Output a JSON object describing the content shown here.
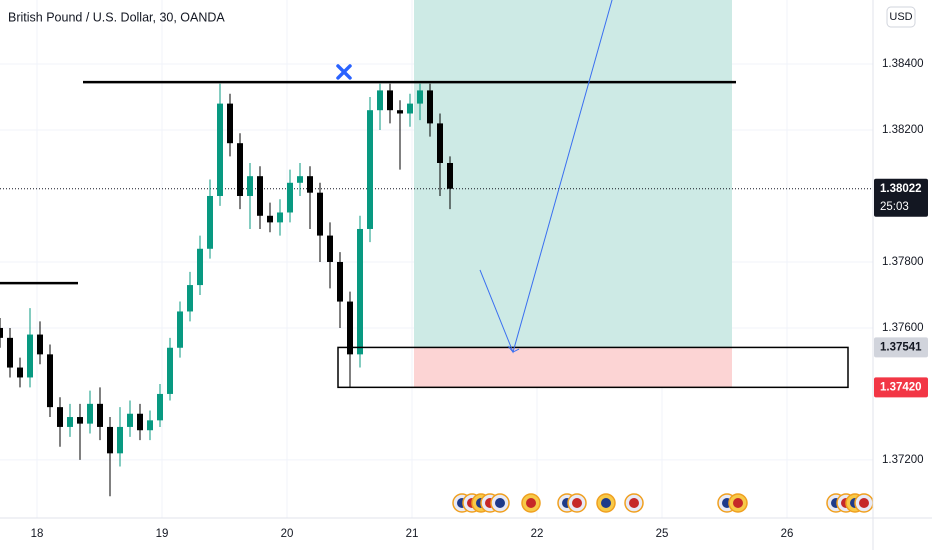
{
  "header": {
    "title": "British Pound / U.S. Dollar, 30, OANDA",
    "currency": "USD"
  },
  "chart_data": {
    "type": "candlestick",
    "x": [
      -0.296,
      -0.216,
      -0.136,
      -0.056,
      0.024,
      0.104,
      0.184,
      0.264,
      0.344,
      0.424,
      0.504,
      0.584,
      0.664,
      0.744,
      0.824,
      0.904,
      0.984,
      1.064,
      1.144,
      1.224,
      1.304,
      1.384,
      1.464,
      1.544,
      1.624,
      1.704,
      1.784,
      1.864,
      1.944,
      2.024,
      2.104,
      2.184,
      2.264,
      2.344,
      2.424,
      2.504,
      2.584,
      2.664,
      2.744,
      2.824,
      2.904,
      2.984,
      3.064,
      3.144,
      3.224,
      3.304
    ],
    "open": [
      1.376,
      1.3757,
      1.3748,
      1.3745,
      1.3758,
      1.3752,
      1.3736,
      1.373,
      1.3733,
      1.3731,
      1.3737,
      1.373,
      1.3722,
      1.373,
      1.3734,
      1.3729,
      1.3732,
      1.374,
      1.3754,
      1.3765,
      1.3773,
      1.3784,
      1.38,
      1.3828,
      1.3816,
      1.38,
      1.3806,
      1.3794,
      1.3792,
      1.3795,
      1.3804,
      1.3806,
      1.3801,
      1.3788,
      1.378,
      1.3768,
      1.3752,
      1.379,
      1.3826,
      1.3832,
      1.3826,
      1.3825,
      1.3828,
      1.3832,
      1.3822,
      1.381
    ],
    "high": [
      1.3763,
      1.376,
      1.3751,
      1.3766,
      1.3762,
      1.3755,
      1.3739,
      1.3737,
      1.3737,
      1.3741,
      1.3742,
      1.3733,
      1.3736,
      1.3738,
      1.3737,
      1.3735,
      1.3743,
      1.3757,
      1.3768,
      1.3777,
      1.3788,
      1.3805,
      1.3834,
      1.3831,
      1.3819,
      1.381,
      1.3809,
      1.3798,
      1.3799,
      1.3808,
      1.381,
      1.3809,
      1.3804,
      1.3792,
      1.3783,
      1.3771,
      1.3794,
      1.383,
      1.3834,
      1.3834,
      1.3829,
      1.3831,
      1.3834,
      1.3834,
      1.3825,
      1.3812
    ],
    "low": [
      1.3754,
      1.3745,
      1.3742,
      1.3742,
      1.3749,
      1.3733,
      1.3724,
      1.3727,
      1.372,
      1.3728,
      1.3726,
      1.3709,
      1.3718,
      1.3727,
      1.3726,
      1.3726,
      1.373,
      1.3738,
      1.3751,
      1.3762,
      1.377,
      1.3781,
      1.3797,
      1.3812,
      1.3796,
      1.379,
      1.379,
      1.3789,
      1.3788,
      1.3792,
      1.38,
      1.379,
      1.378,
      1.3772,
      1.376,
      1.3742,
      1.3748,
      1.3786,
      1.382,
      1.3822,
      1.3808,
      1.3821,
      1.3823,
      1.3818,
      1.38,
      1.3796
    ],
    "close": [
      1.3757,
      1.3748,
      1.3745,
      1.3758,
      1.3752,
      1.3736,
      1.373,
      1.3733,
      1.3731,
      1.3737,
      1.373,
      1.3722,
      1.373,
      1.3734,
      1.3729,
      1.3732,
      1.374,
      1.3754,
      1.3765,
      1.3773,
      1.3784,
      1.38,
      1.3828,
      1.3816,
      1.38,
      1.3806,
      1.3794,
      1.3792,
      1.3795,
      1.3804,
      1.3806,
      1.3801,
      1.3788,
      1.378,
      1.3768,
      1.3752,
      1.379,
      1.3826,
      1.3832,
      1.3826,
      1.3825,
      1.3828,
      1.3832,
      1.3822,
      1.381,
      1.38022
    ],
    "up_color": "#089981",
    "down_color": "#000000",
    "xlim": [
      -0.296,
      6.688
    ],
    "xticks": [
      {
        "value": 0,
        "label": "18"
      },
      {
        "value": 1,
        "label": "19"
      },
      {
        "value": 2,
        "label": "20"
      },
      {
        "value": 3,
        "label": "21"
      },
      {
        "value": 4,
        "label": "22"
      },
      {
        "value": 5,
        "label": "25"
      },
      {
        "value": 6,
        "label": "26"
      }
    ],
    "ylim": [
      1.37024,
      1.38594
    ],
    "yticks": [
      {
        "value": 1.372,
        "label": "1.37200"
      },
      {
        "value": 1.376,
        "label": "1.37600"
      },
      {
        "value": 1.378,
        "label": "1.37800"
      },
      {
        "value": 1.382,
        "label": "1.38200"
      },
      {
        "value": 1.384,
        "label": "1.38400"
      }
    ],
    "grid": true,
    "last_price": 1.38022,
    "countdown": "25:03",
    "drawings": {
      "lines": [
        {
          "price": 1.38345,
          "x": [
            0.368,
            5.592
          ]
        },
        {
          "price": 1.37736,
          "x": [
            -0.296,
            0.328
          ]
        }
      ],
      "box": {
        "x": [
          2.408,
          6.488
        ],
        "top": 1.37541,
        "bottom": {
          "value": 1.3742,
          "label": "1.37420"
        }
      },
      "position": {
        "x": [
          3.016,
          5.56
        ],
        "target": 1.387,
        "target_color": "#cdeae5",
        "stop_color": "#fcd4d4"
      },
      "arrow": {
        "x": [
          3.544,
          3.808,
          4.679
        ],
        "y": [
          1.37776,
          1.37527,
          1.387
        ],
        "color": "#3a6ff0"
      },
      "marker": {
        "x": 2.456,
        "y": 1.38376,
        "color": "#2962ff"
      }
    }
  }
}
